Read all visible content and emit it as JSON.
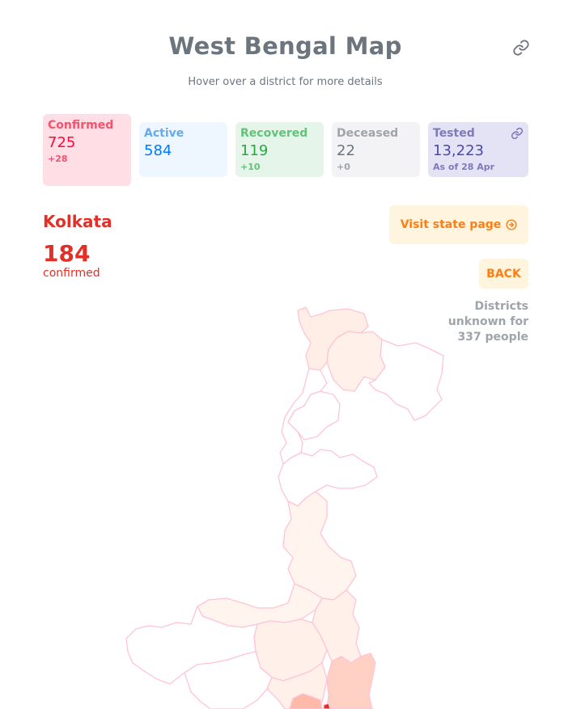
{
  "header": {
    "title": "West Bengal Map",
    "subtitle": "Hover over a district for more details",
    "share_icon": "share-icon"
  },
  "stats": {
    "confirmed": {
      "label": "Confirmed",
      "value": "725",
      "delta": "+28"
    },
    "active": {
      "label": "Active",
      "value": "584"
    },
    "recovered": {
      "label": "Recovered",
      "value": "119",
      "delta": "+10"
    },
    "deceased": {
      "label": "Deceased",
      "value": "22",
      "delta": "+0"
    },
    "tested": {
      "label": "Tested",
      "value": "13,223",
      "delta": "As of 28 Apr",
      "icon": "link-icon"
    }
  },
  "district_panel": {
    "name": "Kolkata",
    "count": "184",
    "caption": "confirmed"
  },
  "actions": {
    "visit_state_label": "Visit state page",
    "visit_icon": "arrow-right-circle-icon",
    "back_label": "BACK"
  },
  "unknown_note": {
    "line1": "Districts",
    "line2": "unknown for",
    "line3": "337 people"
  },
  "colors": {
    "confirmed": "#ff073a",
    "active": "#007bff",
    "recovered": "#28a745",
    "deceased": "#6c757d",
    "tested": "#4b49a9",
    "accent_orange": "#fd7e14",
    "district_highlight": "#e23028",
    "map_stroke": "#ffc4d6"
  }
}
